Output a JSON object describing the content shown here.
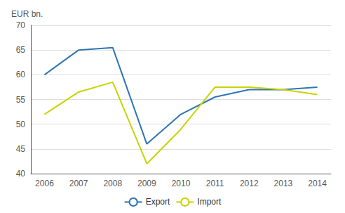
{
  "chart_data": {
    "type": "line",
    "y_label": "EUR bn.",
    "x": [
      2006,
      2007,
      2008,
      2009,
      2010,
      2011,
      2012,
      2013,
      2014
    ],
    "xlim": [
      2005.6,
      2014.4
    ],
    "xticks": [
      2006,
      2007,
      2008,
      2009,
      2010,
      2011,
      2012,
      2013,
      2014
    ],
    "series": [
      {
        "name": "Export",
        "color": "#2e75b6",
        "values": [
          60.0,
          65.0,
          65.5,
          46.0,
          52.0,
          55.5,
          57.0,
          57.0,
          57.5
        ]
      },
      {
        "name": "Import",
        "color": "#c8d400",
        "values": [
          52.0,
          56.5,
          58.5,
          42.0,
          49.0,
          57.5,
          57.5,
          57.0,
          56.0
        ]
      }
    ],
    "ylim": [
      40,
      70
    ],
    "yticks": [
      40,
      45,
      50,
      55,
      60,
      65,
      70
    ],
    "grid": true,
    "legend": "bottom"
  }
}
